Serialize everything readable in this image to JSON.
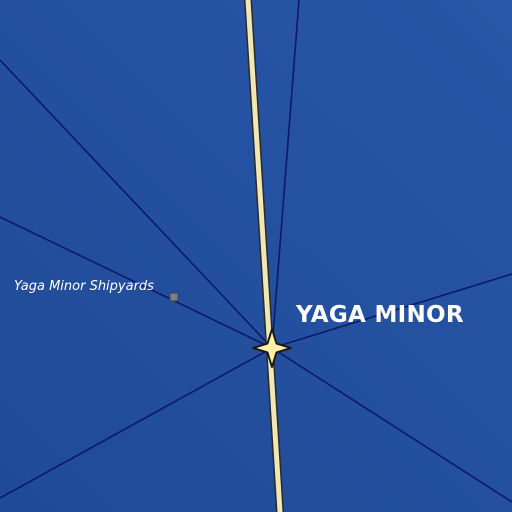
{
  "map": {
    "system": {
      "name": "YAGA MINOR"
    },
    "point_of_interest": {
      "name": "Yaga Minor Shipyards"
    },
    "icons": {
      "system_marker": "four-point-star-icon",
      "poi_marker": "square-marker-icon"
    },
    "colors": {
      "space_background": "#1f4a96",
      "space_background_light": "#2856a8",
      "hyperlane": "#0d1a66",
      "major_route_fill": "#efe8b4",
      "major_route_outline": "#2b2b2b",
      "system_star": "#fbf1a6",
      "poi_marker": "#7a7f8c",
      "label_text": "#ffffff"
    }
  }
}
